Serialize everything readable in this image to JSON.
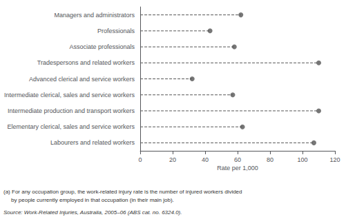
{
  "chart_data": {
    "type": "dot",
    "orientation": "horizontal",
    "categories": [
      "Managers and administrators",
      "Professionals",
      "Associate professionals",
      "Tradespersons and related workers",
      "Advanced clerical and service workers",
      "Intermediate clerical, sales and service workers",
      "Intermediate production and transport workers",
      "Elementary clerical, sales and service workers",
      "Labourers and related workers"
    ],
    "values": [
      62,
      43,
      58,
      110,
      32,
      57,
      110,
      63,
      107
    ],
    "color": "#555555",
    "line_style": "dashed",
    "xlabel": "Rate per 1,000",
    "xlim": [
      0,
      120
    ],
    "xticks": [
      0,
      20,
      40,
      60,
      80,
      100,
      120
    ],
    "grid": false,
    "annotations": [
      "(a) For any occupation group, the work-related injury rate is the number of injured workers divided",
      "     by people currently employed in that occupation (in their main job)."
    ],
    "source": "Source: Work-Related Injuries, Australia, 2005–06 (ABS cat. no. 6324.0)."
  }
}
